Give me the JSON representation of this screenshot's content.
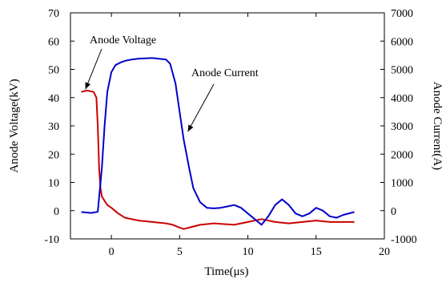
{
  "chart_data": {
    "type": "line",
    "title": "",
    "xlabel": "Time(μs)",
    "ylabel_left": "Anode Voltage(kV)",
    "ylabel_right": "Anode Current(A)",
    "xlim": [
      -3,
      20
    ],
    "ylim_left": [
      -10,
      70
    ],
    "ylim_right": [
      -1000,
      7000
    ],
    "x_ticks": [
      0,
      5,
      10,
      15,
      20
    ],
    "y_ticks_left": [
      -10,
      0,
      10,
      20,
      30,
      40,
      50,
      60,
      70
    ],
    "y_ticks_right": [
      -1000,
      0,
      1000,
      2000,
      3000,
      4000,
      5000,
      6000,
      7000
    ],
    "grid": false,
    "series": [
      {
        "name": "Anode Voltage",
        "axis": "left",
        "color": "#cc0000",
        "x": [
          -2.2,
          -1.8,
          -1.3,
          -1.1,
          -1.0,
          -0.9,
          -0.8,
          -0.7,
          -0.5,
          -0.3,
          0,
          0.5,
          1,
          2,
          3,
          4,
          4.5,
          5,
          5.3,
          5.7,
          6.5,
          7.5,
          9,
          10,
          11,
          12,
          13,
          14,
          15,
          16,
          17,
          17.8
        ],
        "values": [
          42,
          42.5,
          42,
          40,
          30,
          15,
          8,
          5,
          3.5,
          2,
          1,
          -1,
          -2.5,
          -3.5,
          -4,
          -4.5,
          -5,
          -6,
          -6.5,
          -6,
          -5,
          -4.5,
          -5,
          -4,
          -3,
          -4,
          -4.5,
          -4,
          -3.5,
          -4,
          -4,
          -4
        ]
      },
      {
        "name": "Anode Current",
        "axis": "right",
        "color": "#0000cc",
        "x": [
          -2.2,
          -1.5,
          -1.0,
          -0.7,
          -0.5,
          -0.3,
          0,
          0.3,
          0.7,
          1,
          1.5,
          2,
          3,
          4,
          4.3,
          4.7,
          5,
          5.3,
          5.7,
          6,
          6.5,
          7,
          7.5,
          8,
          8.5,
          9,
          9.5,
          10,
          10.5,
          11,
          11.5,
          12,
          12.5,
          13,
          13.5,
          14,
          14.5,
          15,
          15.5,
          16,
          16.5,
          17,
          17.8
        ],
        "values": [
          -50,
          -80,
          -40,
          1500,
          3000,
          4200,
          4900,
          5150,
          5250,
          5300,
          5350,
          5380,
          5400,
          5350,
          5200,
          4500,
          3500,
          2500,
          1500,
          800,
          300,
          100,
          80,
          100,
          150,
          200,
          100,
          -100,
          -300,
          -500,
          -200,
          200,
          400,
          200,
          -100,
          -200,
          -100,
          100,
          0,
          -200,
          -250,
          -150,
          -50
        ]
      }
    ],
    "annotations": [
      {
        "text": "Anode Voltage",
        "target_x": -1.9,
        "target_y": 43,
        "axis": "left"
      },
      {
        "text": "Anode Current",
        "target_x": 5.6,
        "target_y": 2800,
        "axis": "right"
      }
    ]
  }
}
